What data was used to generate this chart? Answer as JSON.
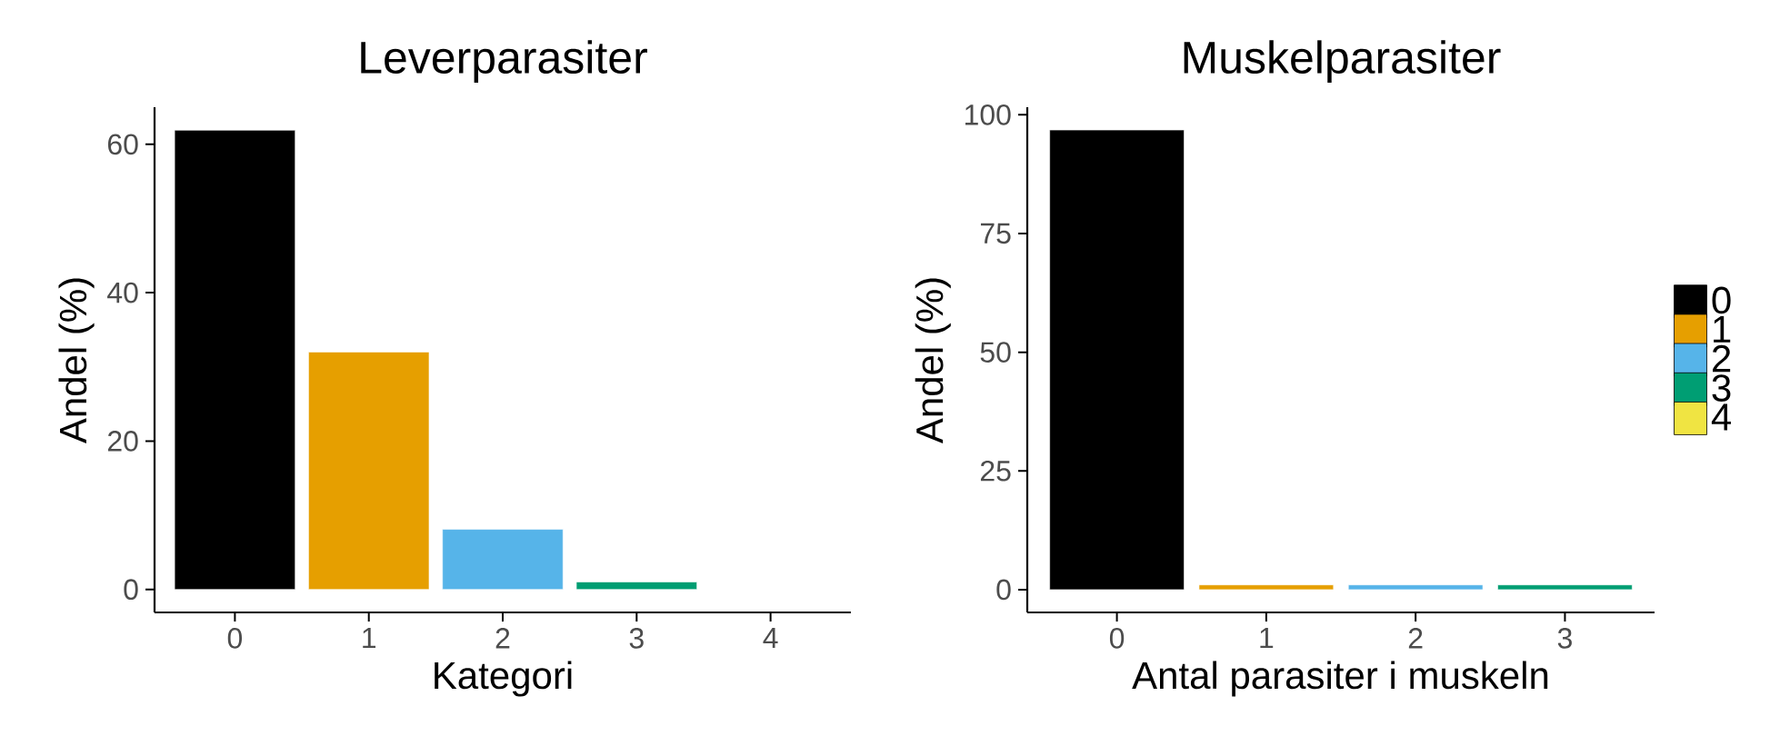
{
  "chart_data": [
    {
      "type": "bar",
      "title": "Leverparasiter",
      "xlabel": "Kategori",
      "ylabel": "Andel (%)",
      "categories": [
        "0",
        "1",
        "2",
        "3",
        "4"
      ],
      "values": [
        61.9,
        32.0,
        8.1,
        1.0,
        0
      ],
      "colors": [
        "#000000",
        "#e69f00",
        "#56b4e9",
        "#009e73",
        "#f0e442"
      ],
      "ylim": [
        -3.1,
        65
      ],
      "yticks": [
        0,
        20,
        40,
        60
      ],
      "grid": false,
      "legend": false
    },
    {
      "type": "bar",
      "title": "Muskelparasiter",
      "xlabel": "Antal parasiter i muskeln",
      "ylabel": "Andel (%)",
      "categories": [
        "0",
        "1",
        "2",
        "3"
      ],
      "series": [
        {
          "name": "0",
          "color": "#000000",
          "values": [
            96.8,
            null,
            null,
            null
          ]
        },
        {
          "name": "1",
          "color": "#e69f00",
          "values": [
            null,
            1.0,
            null,
            null
          ]
        },
        {
          "name": "2",
          "color": "#56b4e9",
          "values": [
            null,
            null,
            1.0,
            null
          ]
        },
        {
          "name": "3",
          "color": "#009e73",
          "values": [
            null,
            null,
            null,
            1.0
          ]
        },
        {
          "name": "4",
          "color": "#f0e442",
          "values": [
            null,
            null,
            null,
            null
          ]
        }
      ],
      "ylim": [
        -4.8,
        101.6
      ],
      "yticks": [
        0,
        25,
        50,
        75,
        100
      ],
      "grid": false,
      "legend": "right"
    }
  ]
}
